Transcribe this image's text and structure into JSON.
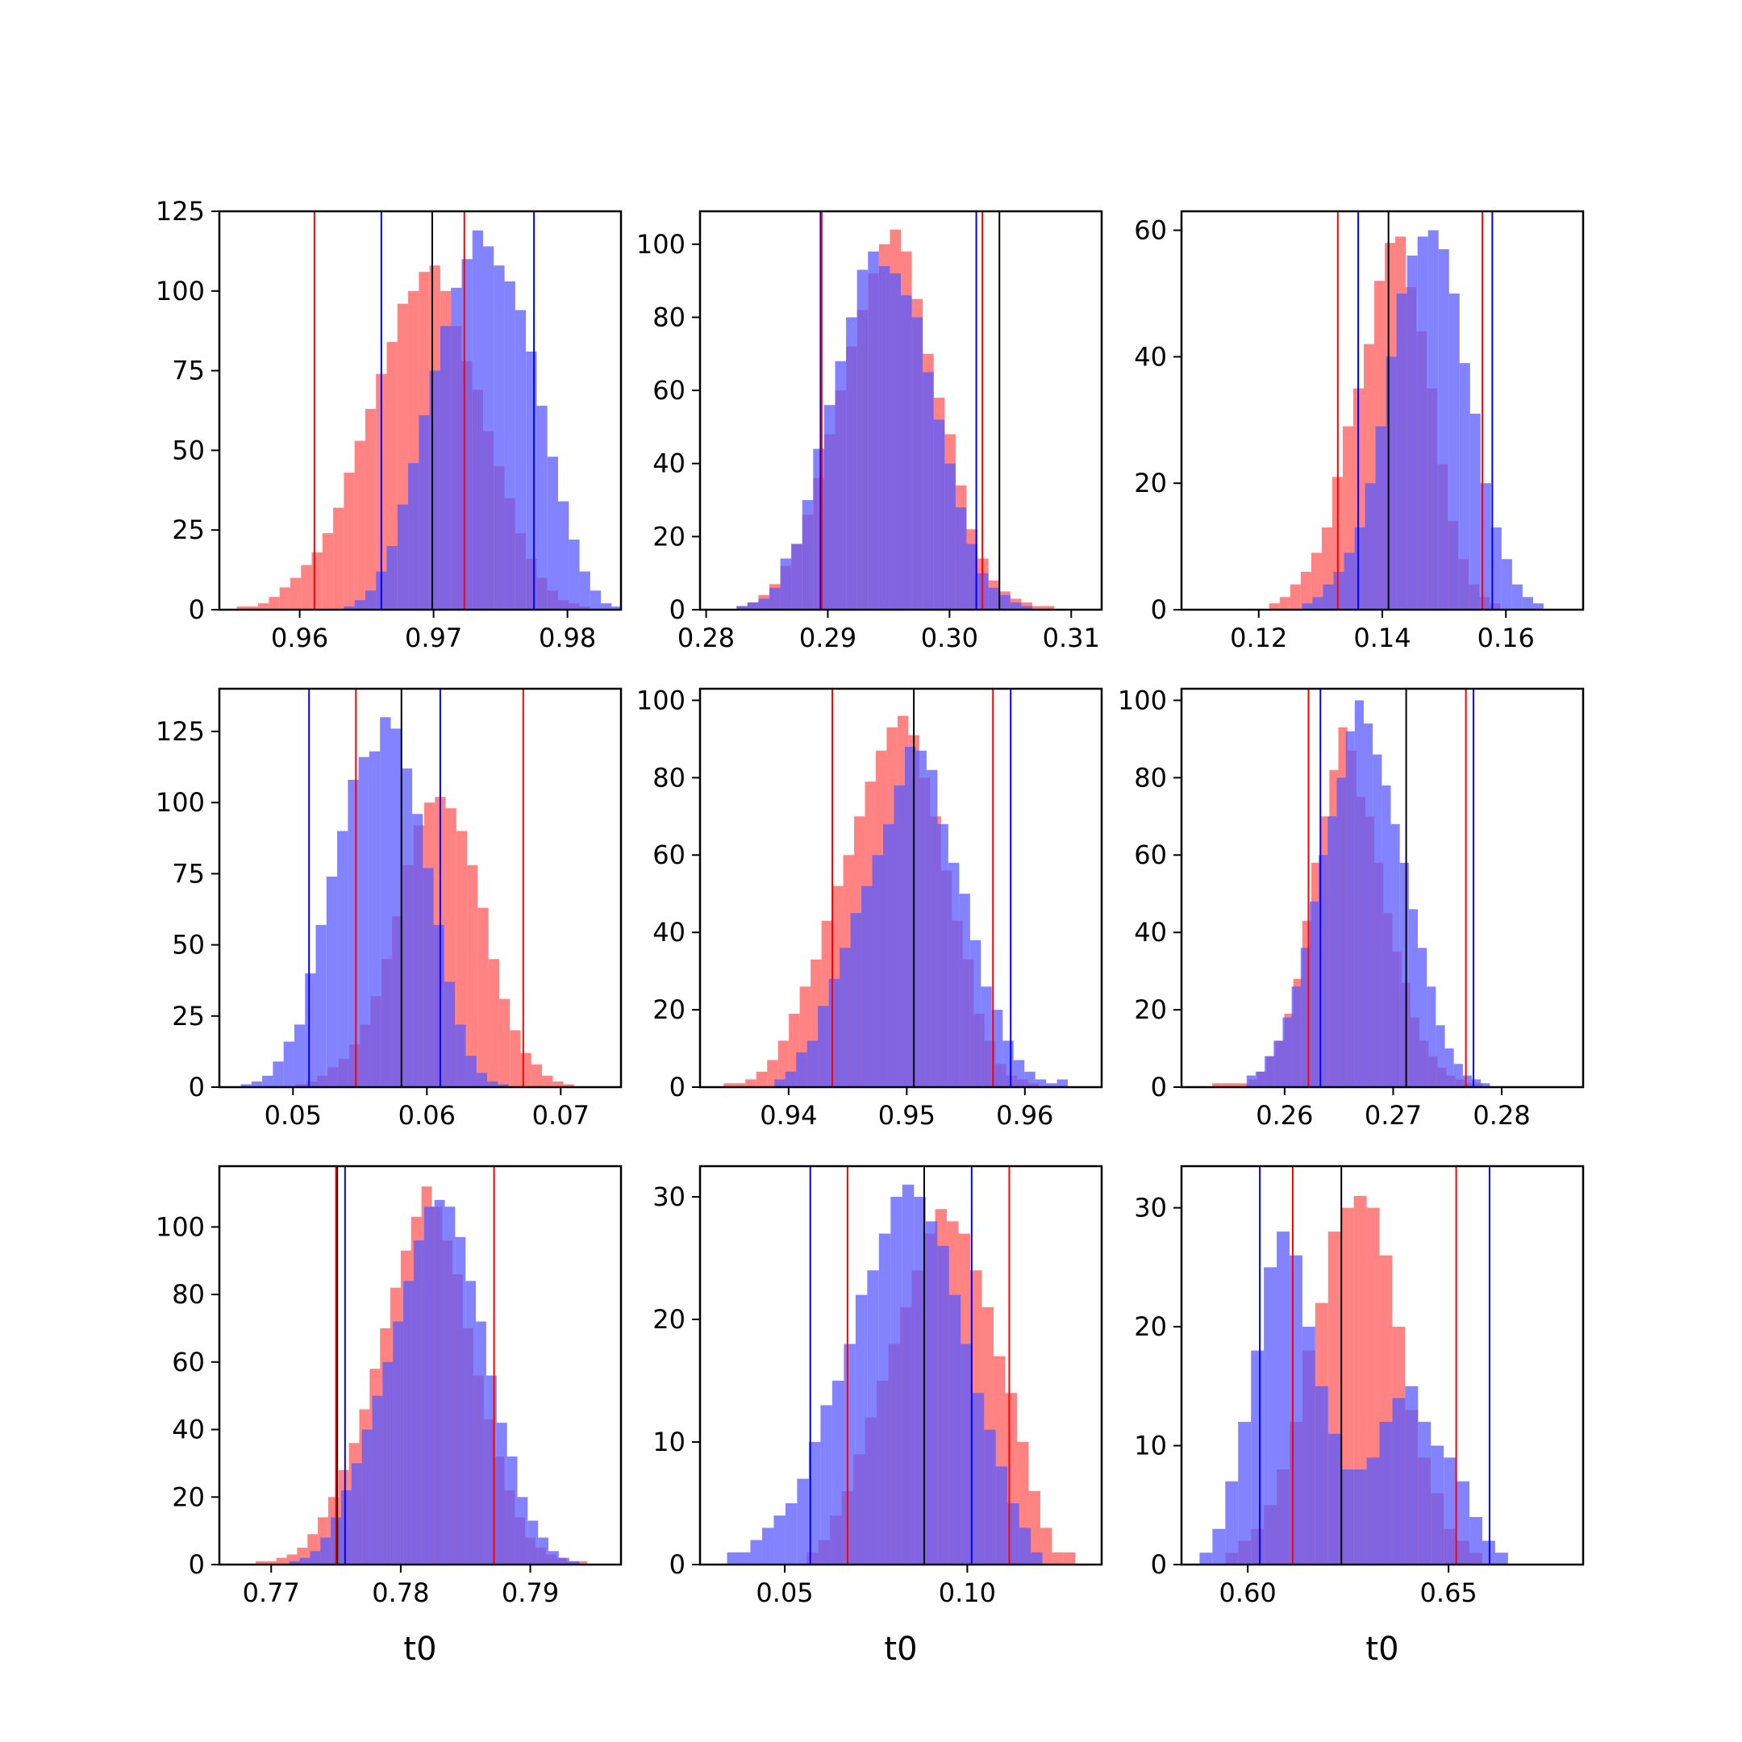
{
  "figure": {
    "colors": {
      "sample_a": "#ff5a5a",
      "sample_b": "#5a5aff",
      "overlap": "#7d3ac2",
      "axis": "#000000"
    },
    "vline_colors": [
      "#ff0000",
      "#0000ff",
      "#000000"
    ]
  },
  "chart_data": [
    {
      "type": "histogram",
      "row": 1,
      "col": 1,
      "xlabel": "",
      "xlim": [
        0.954,
        0.984
      ],
      "ylim": [
        0,
        125
      ],
      "xticks": [
        0.96,
        0.97,
        0.98
      ],
      "xtick_labels": [
        "0.96",
        "0.97",
        "0.98"
      ],
      "yticks": [
        0,
        25,
        50,
        75,
        100,
        125
      ],
      "ytick_labels": [
        "0",
        "25",
        "50",
        "75",
        "100",
        "125"
      ],
      "series": [
        {
          "color": "red",
          "bin_start": 0.9553,
          "bin_width": 0.0008,
          "counts": [
            1,
            1,
            2,
            4,
            7,
            10,
            14,
            18,
            24,
            32,
            43,
            53,
            63,
            74,
            84,
            96,
            100,
            106,
            108,
            100,
            89,
            78,
            69,
            56,
            45,
            35,
            24,
            16,
            10,
            6,
            3,
            2,
            1,
            0,
            0
          ]
        },
        {
          "color": "blue",
          "bin_start": 0.9633,
          "bin_width": 0.0008,
          "counts": [
            1,
            3,
            6,
            12,
            20,
            33,
            46,
            61,
            75,
            89,
            101,
            110,
            119,
            114,
            108,
            103,
            94,
            81,
            64,
            48,
            34,
            22,
            12,
            6,
            2,
            1
          ]
        }
      ],
      "vlines": [
        {
          "color": "red",
          "x": 0.9611
        },
        {
          "color": "blue",
          "x": 0.9661
        },
        {
          "color": "black",
          "x": 0.9699
        },
        {
          "color": "red",
          "x": 0.9723
        },
        {
          "color": "blue",
          "x": 0.9775
        }
      ]
    },
    {
      "type": "histogram",
      "row": 1,
      "col": 2,
      "xlabel": "",
      "xlim": [
        0.2795,
        0.3125
      ],
      "ylim": [
        0,
        109
      ],
      "xticks": [
        0.28,
        0.29,
        0.3,
        0.31
      ],
      "xtick_labels": [
        "0.28",
        "0.29",
        "0.30",
        "0.31"
      ],
      "yticks": [
        0,
        20,
        40,
        60,
        80,
        100
      ],
      "ytick_labels": [
        "0",
        "20",
        "40",
        "60",
        "80",
        "100"
      ],
      "series": [
        {
          "color": "red",
          "bin_start": 0.2825,
          "bin_width": 0.0009,
          "counts": [
            1,
            2,
            4,
            7,
            12,
            18,
            26,
            36,
            48,
            60,
            72,
            82,
            92,
            100,
            104,
            98,
            85,
            70,
            58,
            48,
            34,
            22,
            14,
            8,
            5,
            3,
            2,
            1,
            1
          ]
        },
        {
          "color": "blue",
          "bin_start": 0.2825,
          "bin_width": 0.0009,
          "counts": [
            1,
            2,
            3,
            6,
            14,
            18,
            30,
            44,
            56,
            68,
            80,
            93,
            98,
            94,
            92,
            86,
            80,
            65,
            52,
            40,
            28,
            18,
            10,
            6,
            4,
            2,
            1
          ]
        }
      ],
      "vlines": [
        {
          "color": "blue",
          "x": 0.2894
        },
        {
          "color": "red",
          "x": 0.2895
        },
        {
          "color": "blue",
          "x": 0.3022
        },
        {
          "color": "red",
          "x": 0.3027
        },
        {
          "color": "black",
          "x": 0.3041
        }
      ]
    },
    {
      "type": "histogram",
      "row": 1,
      "col": 3,
      "xlabel": "",
      "xlim": [
        0.1075,
        0.1725
      ],
      "ylim": [
        0,
        63
      ],
      "xticks": [
        0.12,
        0.14,
        0.16
      ],
      "xtick_labels": [
        "0.12",
        "0.14",
        "0.16"
      ],
      "yticks": [
        0,
        20,
        40,
        60
      ],
      "ytick_labels": [
        "0",
        "20",
        "40",
        "60"
      ],
      "series": [
        {
          "color": "red",
          "bin_start": 0.12,
          "bin_width": 0.0017,
          "counts": [
            0,
            1,
            2,
            4,
            6,
            9,
            13,
            21,
            29,
            35,
            42,
            52,
            58,
            59,
            51,
            44,
            35,
            23,
            14,
            8,
            4,
            2,
            1,
            0
          ]
        },
        {
          "color": "blue",
          "bin_start": 0.127,
          "bin_width": 0.0017,
          "counts": [
            1,
            2,
            4,
            6,
            9,
            13,
            20,
            29,
            40,
            50,
            56,
            59,
            60,
            57,
            50,
            39,
            31,
            20,
            13,
            8,
            4,
            2,
            1
          ]
        }
      ],
      "vlines": [
        {
          "color": "red",
          "x": 0.1328
        },
        {
          "color": "blue",
          "x": 0.1361
        },
        {
          "color": "black",
          "x": 0.141
        },
        {
          "color": "red",
          "x": 0.1562
        },
        {
          "color": "blue",
          "x": 0.1578
        }
      ]
    },
    {
      "type": "histogram",
      "row": 2,
      "col": 1,
      "xlabel": "",
      "xlim": [
        0.0445,
        0.0745
      ],
      "ylim": [
        0,
        140
      ],
      "xticks": [
        0.05,
        0.06,
        0.07
      ],
      "xtick_labels": [
        "0.05",
        "0.06",
        "0.07"
      ],
      "yticks": [
        0,
        25,
        50,
        75,
        100,
        125
      ],
      "ytick_labels": [
        "0",
        "25",
        "50",
        "75",
        "100",
        "125"
      ],
      "series": [
        {
          "color": "red",
          "bin_start": 0.0502,
          "bin_width": 0.0008,
          "counts": [
            1,
            2,
            4,
            7,
            10,
            15,
            22,
            32,
            45,
            60,
            78,
            92,
            100,
            102,
            98,
            90,
            78,
            63,
            45,
            31,
            20,
            12,
            8,
            4,
            2,
            1
          ]
        },
        {
          "color": "blue",
          "bin_start": 0.0461,
          "bin_width": 0.0008,
          "counts": [
            1,
            2,
            4,
            9,
            16,
            22,
            40,
            57,
            74,
            90,
            108,
            116,
            118,
            130,
            126,
            112,
            96,
            77,
            57,
            37,
            22,
            11,
            5,
            2,
            1
          ]
        }
      ],
      "vlines": [
        {
          "color": "blue",
          "x": 0.0512
        },
        {
          "color": "red",
          "x": 0.0547
        },
        {
          "color": "black",
          "x": 0.0581
        },
        {
          "color": "blue",
          "x": 0.061
        },
        {
          "color": "red",
          "x": 0.0672
        }
      ]
    },
    {
      "type": "histogram",
      "row": 2,
      "col": 2,
      "xlabel": "",
      "xlim": [
        0.9325,
        0.9665
      ],
      "ylim": [
        0,
        103
      ],
      "xticks": [
        0.94,
        0.95,
        0.96
      ],
      "xtick_labels": [
        "0.94",
        "0.95",
        "0.96"
      ],
      "yticks": [
        0,
        20,
        40,
        60,
        80,
        100
      ],
      "ytick_labels": [
        "0",
        "20",
        "40",
        "60",
        "80",
        "100"
      ],
      "series": [
        {
          "color": "red",
          "bin_start": 0.9345,
          "bin_width": 0.00092,
          "counts": [
            1,
            1,
            2,
            4,
            7,
            12,
            19,
            26,
            33,
            43,
            52,
            60,
            70,
            79,
            87,
            93,
            96,
            91,
            80,
            70,
            56,
            43,
            33,
            19,
            12,
            6,
            3,
            2,
            1
          ]
        },
        {
          "color": "blue",
          "bin_start": 0.9388,
          "bin_width": 0.00092,
          "counts": [
            2,
            4,
            9,
            12,
            21,
            28,
            36,
            45,
            52,
            60,
            68,
            78,
            88,
            87,
            82,
            68,
            58,
            50,
            38,
            26,
            20,
            12,
            7,
            4,
            2,
            1,
            2
          ]
        }
      ],
      "vlines": [
        {
          "color": "red",
          "x": 0.9437
        },
        {
          "color": "black",
          "x": 0.9506
        },
        {
          "color": "red",
          "x": 0.9573
        },
        {
          "color": "blue",
          "x": 0.9588
        }
      ]
    },
    {
      "type": "histogram",
      "row": 2,
      "col": 3,
      "xlabel": "",
      "xlim": [
        0.2505,
        0.2875
      ],
      "ylim": [
        0,
        103
      ],
      "xticks": [
        0.26,
        0.27,
        0.28
      ],
      "xtick_labels": [
        "0.26",
        "0.27",
        "0.28"
      ],
      "yticks": [
        0,
        20,
        40,
        60,
        80,
        100
      ],
      "ytick_labels": [
        "0",
        "20",
        "40",
        "60",
        "80",
        "100"
      ],
      "series": [
        {
          "color": "red",
          "bin_start": 0.2525,
          "bin_width": 0.00083,
          "counts": [
            0,
            1,
            1,
            1,
            1,
            2,
            4,
            8,
            12,
            19,
            28,
            43,
            58,
            70,
            82,
            93,
            87,
            75,
            70,
            58,
            45,
            35,
            27,
            18,
            12,
            8,
            5,
            3,
            2,
            1,
            1
          ]
        },
        {
          "color": "blue",
          "bin_start": 0.2565,
          "bin_width": 0.00083,
          "counts": [
            3,
            4,
            8,
            12,
            18,
            26,
            36,
            48,
            60,
            70,
            80,
            92,
            100,
            94,
            86,
            78,
            68,
            58,
            46,
            36,
            26,
            16,
            10,
            6,
            3,
            2,
            1
          ]
        }
      ],
      "vlines": [
        {
          "color": "red",
          "x": 0.2622
        },
        {
          "color": "blue",
          "x": 0.2633
        },
        {
          "color": "black",
          "x": 0.2712
        },
        {
          "color": "red",
          "x": 0.2767
        },
        {
          "color": "blue",
          "x": 0.2774
        }
      ]
    },
    {
      "type": "histogram",
      "row": 3,
      "col": 1,
      "xlabel": "t0",
      "xlim": [
        0.766,
        0.797
      ],
      "ylim": [
        0,
        118
      ],
      "xticks": [
        0.77,
        0.78,
        0.79
      ],
      "xtick_labels": [
        "0.77",
        "0.78",
        "0.79"
      ],
      "yticks": [
        0,
        20,
        40,
        60,
        80,
        100
      ],
      "ytick_labels": [
        "0",
        "20",
        "40",
        "60",
        "80",
        "100"
      ],
      "series": [
        {
          "color": "red",
          "bin_start": 0.7688,
          "bin_width": 0.0008,
          "counts": [
            1,
            1,
            2,
            3,
            5,
            9,
            14,
            20,
            28,
            36,
            46,
            58,
            70,
            82,
            93,
            103,
            112,
            106,
            96,
            86,
            70,
            56,
            43,
            32,
            22,
            14,
            8,
            5,
            3,
            2,
            1,
            1
          ]
        },
        {
          "color": "blue",
          "bin_start": 0.7714,
          "bin_width": 0.0008,
          "counts": [
            1,
            2,
            4,
            8,
            14,
            22,
            30,
            40,
            50,
            60,
            72,
            84,
            96,
            106,
            108,
            106,
            97,
            84,
            72,
            56,
            42,
            32,
            20,
            13,
            8,
            4,
            2,
            1
          ]
        }
      ],
      "vlines": [
        {
          "color": "red",
          "x": 0.775
        },
        {
          "color": "blue",
          "x": 0.7757
        },
        {
          "color": "black",
          "x": 0.7751
        },
        {
          "color": "red",
          "x": 0.7872
        }
      ]
    },
    {
      "type": "histogram",
      "row": 3,
      "col": 2,
      "xlabel": "t0",
      "xlim": [
        0.0268,
        0.1368
      ],
      "ylim": [
        0,
        32.5
      ],
      "xticks": [
        0.05,
        0.1
      ],
      "xtick_labels": [
        "0.05",
        "0.10"
      ],
      "yticks": [
        0,
        10,
        20,
        30
      ],
      "ytick_labels": [
        "0",
        "10",
        "20",
        "30"
      ],
      "series": [
        {
          "color": "red",
          "bin_start": 0.056,
          "bin_width": 0.0032,
          "counts": [
            1,
            2,
            4,
            6,
            9,
            12,
            15,
            18,
            21,
            24,
            27,
            29,
            28,
            27,
            24,
            21,
            17,
            14,
            10,
            6,
            3,
            1,
            1
          ]
        },
        {
          "color": "blue",
          "bin_start": 0.0342,
          "bin_width": 0.0032,
          "counts": [
            1,
            1,
            2,
            3,
            4,
            5,
            7,
            10,
            13,
            15,
            18,
            22,
            24,
            27,
            30,
            31,
            30,
            28,
            26,
            22,
            18,
            14,
            11,
            8,
            5,
            3,
            1
          ]
        }
      ],
      "vlines": [
        {
          "color": "blue",
          "x": 0.057
        },
        {
          "color": "red",
          "x": 0.0672
        },
        {
          "color": "black",
          "x": 0.0882
        },
        {
          "color": "blue",
          "x": 0.1012
        },
        {
          "color": "red",
          "x": 0.1115
        }
      ]
    },
    {
      "type": "histogram",
      "row": 3,
      "col": 3,
      "xlabel": "t0",
      "xlim": [
        0.5835,
        0.6835
      ],
      "ylim": [
        0,
        33.5
      ],
      "xticks": [
        0.6,
        0.65
      ],
      "xtick_labels": [
        "0.60",
        "0.65"
      ],
      "yticks": [
        0,
        10,
        20,
        30
      ],
      "ytick_labels": [
        "0",
        "10",
        "20",
        "30"
      ],
      "series": [
        {
          "color": "red",
          "bin_start": 0.5912,
          "bin_width": 0.0032,
          "counts": [
            0,
            1,
            2,
            3,
            5,
            8,
            12,
            18,
            22,
            28,
            30,
            31,
            30,
            26,
            20,
            13,
            9,
            6,
            3,
            2,
            1,
            0
          ]
        },
        {
          "color": "blue",
          "bin_start": 0.588,
          "bin_width": 0.0032,
          "counts": [
            1,
            3,
            7,
            12,
            18,
            25,
            28,
            26,
            20,
            15,
            11,
            8,
            8,
            9,
            12,
            14,
            15,
            12,
            10,
            9,
            7,
            4,
            2,
            1
          ]
        }
      ],
      "vlines": [
        {
          "color": "blue",
          "x": 0.603
        },
        {
          "color": "red",
          "x": 0.6112
        },
        {
          "color": "black",
          "x": 0.6233
        },
        {
          "color": "red",
          "x": 0.6519
        },
        {
          "color": "blue",
          "x": 0.6602
        }
      ]
    }
  ]
}
